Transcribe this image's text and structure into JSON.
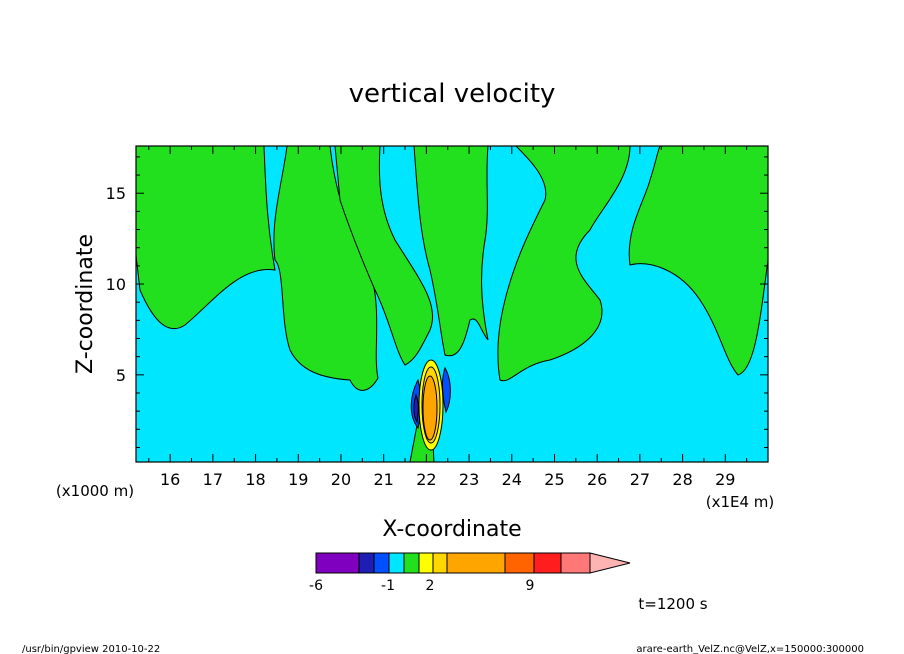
{
  "chart_data": {
    "type": "contour",
    "title": "vertical velocity",
    "xlabel": "X-coordinate",
    "ylabel": "Z-coordinate",
    "x_unit_label": "(x1E4 m)",
    "y_unit_label": "(x1000 m)",
    "xlim": [
      15.2,
      30.0
    ],
    "ylim": [
      0.2,
      17.6
    ],
    "x_ticks": [
      16,
      17,
      18,
      19,
      20,
      21,
      22,
      23,
      24,
      25,
      26,
      27,
      28,
      29
    ],
    "y_ticks": [
      5,
      10,
      15
    ],
    "colorbar": {
      "levels": [
        -6,
        -5,
        -4,
        -3,
        -2,
        -1,
        0,
        1,
        2,
        3,
        5,
        9,
        11,
        13
      ],
      "tick_labels": [
        "-6",
        "-1",
        "2",
        "9"
      ],
      "colors": [
        "#7f00bf",
        "#1e1eb4",
        "#0050ff",
        "#00e6ff",
        "#22e01e",
        "#ffff00",
        "#ffd700",
        "#ffa500",
        "#ff6400",
        "#ff1e1e",
        "#ff7878",
        "#ffb4b4"
      ]
    },
    "time_label": "t=1200 s",
    "footer_left": "/usr/bin/gpview 2010-10-22",
    "footer_right": "arare-earth_VelZ.nc@VelZ,x=150000:300000"
  }
}
